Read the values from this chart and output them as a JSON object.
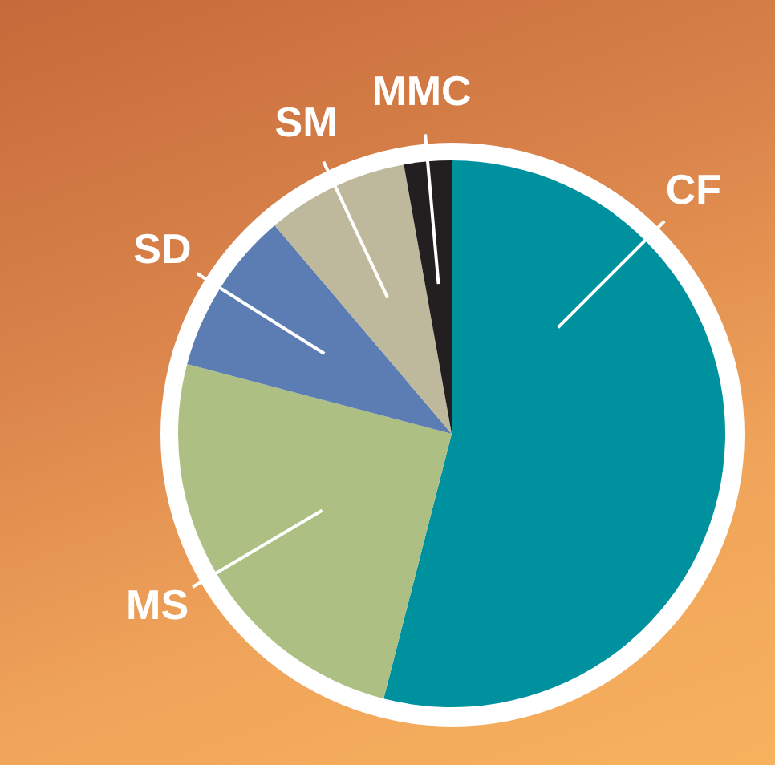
{
  "chart_data": {
    "type": "pie",
    "categories": [
      "CF",
      "MS",
      "SD",
      "SM",
      "MMC"
    ],
    "values": [
      54.0,
      25.1,
      9.7,
      8.4,
      2.8
    ],
    "colors": [
      "#00919e",
      "#adbf82",
      "#5b7db3",
      "#beb89c",
      "#231f20"
    ],
    "legend": false
  }
}
